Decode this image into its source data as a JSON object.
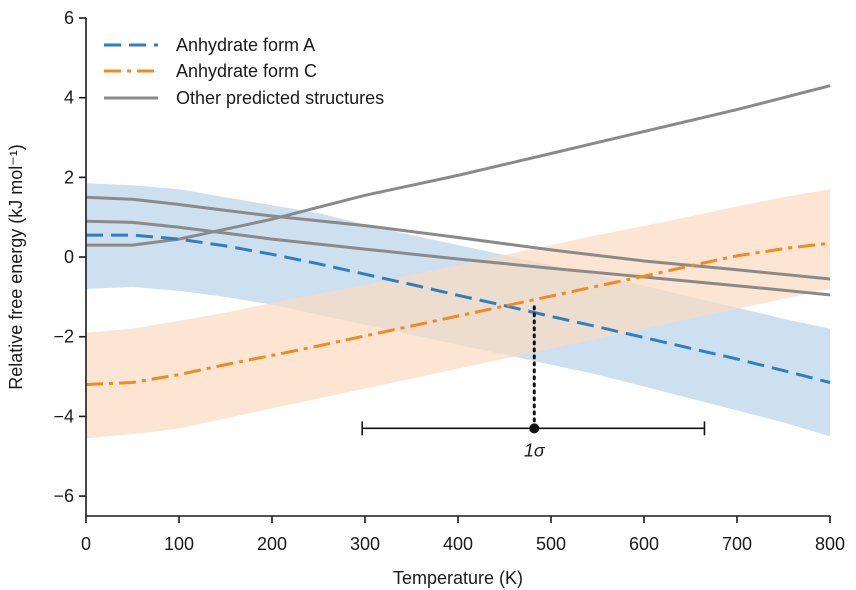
{
  "chart_data": {
    "type": "line",
    "title": "",
    "xlabel": "Temperature (K)",
    "ylabel": "Relative free energy (kJ mol⁻¹)",
    "xlim": [
      0,
      800
    ],
    "ylim": [
      -6.5,
      6
    ],
    "x_ticks": [
      0,
      100,
      200,
      300,
      400,
      500,
      600,
      700,
      800
    ],
    "y_ticks": [
      -6,
      -4,
      -2,
      0,
      2,
      4,
      6
    ],
    "y_tick_labels": [
      "−6",
      "−4",
      "−2",
      "0",
      "2",
      "4",
      "6"
    ],
    "grid": false,
    "legend_position": "top-left",
    "series": [
      {
        "name": "Anhydrate form A",
        "style": "dashed",
        "color": "#2f7fbf",
        "band_color": "#bcd6ea",
        "x": [
          0,
          50,
          100,
          150,
          200,
          250,
          300,
          350,
          400,
          450,
          500,
          550,
          600,
          650,
          700,
          750,
          800
        ],
        "y": [
          0.55,
          0.55,
          0.45,
          0.28,
          0.07,
          -0.17,
          -0.43,
          -0.69,
          -0.96,
          -1.22,
          -1.49,
          -1.75,
          -2.02,
          -2.29,
          -2.56,
          -2.85,
          -3.15
        ],
        "band_upper": [
          1.85,
          1.8,
          1.7,
          1.5,
          1.3,
          1.1,
          0.82,
          0.55,
          0.3,
          0.05,
          -0.2,
          -0.45,
          -0.72,
          -1.0,
          -1.27,
          -1.55,
          -1.8
        ],
        "band_lower": [
          -0.8,
          -0.75,
          -0.85,
          -1.0,
          -1.2,
          -1.45,
          -1.7,
          -1.95,
          -2.2,
          -2.45,
          -2.7,
          -2.95,
          -3.25,
          -3.55,
          -3.85,
          -4.15,
          -4.5
        ]
      },
      {
        "name": "Anhydrate form C",
        "style": "dash-dot",
        "color": "#f28a1e",
        "band_color": "#fbdcc0",
        "x": [
          0,
          50,
          100,
          150,
          200,
          250,
          300,
          350,
          400,
          450,
          500,
          550,
          600,
          650,
          700,
          750,
          800
        ],
        "y": [
          -3.2,
          -3.15,
          -2.95,
          -2.7,
          -2.47,
          -2.23,
          -1.98,
          -1.73,
          -1.48,
          -1.23,
          -0.98,
          -0.73,
          -0.48,
          -0.22,
          0.03,
          0.21,
          0.35
        ],
        "band_upper": [
          -1.9,
          -1.8,
          -1.6,
          -1.4,
          -1.15,
          -0.92,
          -0.7,
          -0.45,
          -0.2,
          0.05,
          0.3,
          0.55,
          0.78,
          1.02,
          1.27,
          1.5,
          1.7
        ],
        "band_lower": [
          -4.55,
          -4.45,
          -4.3,
          -4.05,
          -3.8,
          -3.55,
          -3.3,
          -3.05,
          -2.8,
          -2.55,
          -2.3,
          -2.05,
          -1.8,
          -1.55,
          -1.3,
          -1.05,
          -0.8
        ]
      },
      {
        "name": "Other predicted structures",
        "style": "solid",
        "color": "#8a8a8a",
        "lines": [
          {
            "x": [
              0,
              50,
              100,
              150,
              200,
              300,
              400,
              500,
              600,
              700,
              800
            ],
            "y": [
              0.3,
              0.3,
              0.45,
              0.7,
              0.95,
              1.55,
              2.05,
              2.6,
              3.15,
              3.7,
              4.3
            ]
          },
          {
            "x": [
              0,
              50,
              100,
              150,
              200,
              300,
              400,
              500,
              600,
              700,
              800
            ],
            "y": [
              1.5,
              1.45,
              1.32,
              1.17,
              1.03,
              0.79,
              0.49,
              0.18,
              -0.1,
              -0.32,
              -0.55
            ]
          },
          {
            "x": [
              0,
              50,
              100,
              150,
              200,
              300,
              400,
              500,
              600,
              700,
              800
            ],
            "y": [
              0.9,
              0.87,
              0.75,
              0.6,
              0.45,
              0.2,
              -0.05,
              -0.28,
              -0.5,
              -0.72,
              -0.95
            ]
          }
        ]
      }
    ],
    "annotations": [
      {
        "type": "vertical-dotted-line",
        "x": 482,
        "y_from": -1.25,
        "y_to": -4.3
      },
      {
        "type": "error-bar",
        "label": "1σ",
        "center_x": 482,
        "y": -4.3,
        "x_from": 297,
        "x_to": 665
      }
    ]
  }
}
